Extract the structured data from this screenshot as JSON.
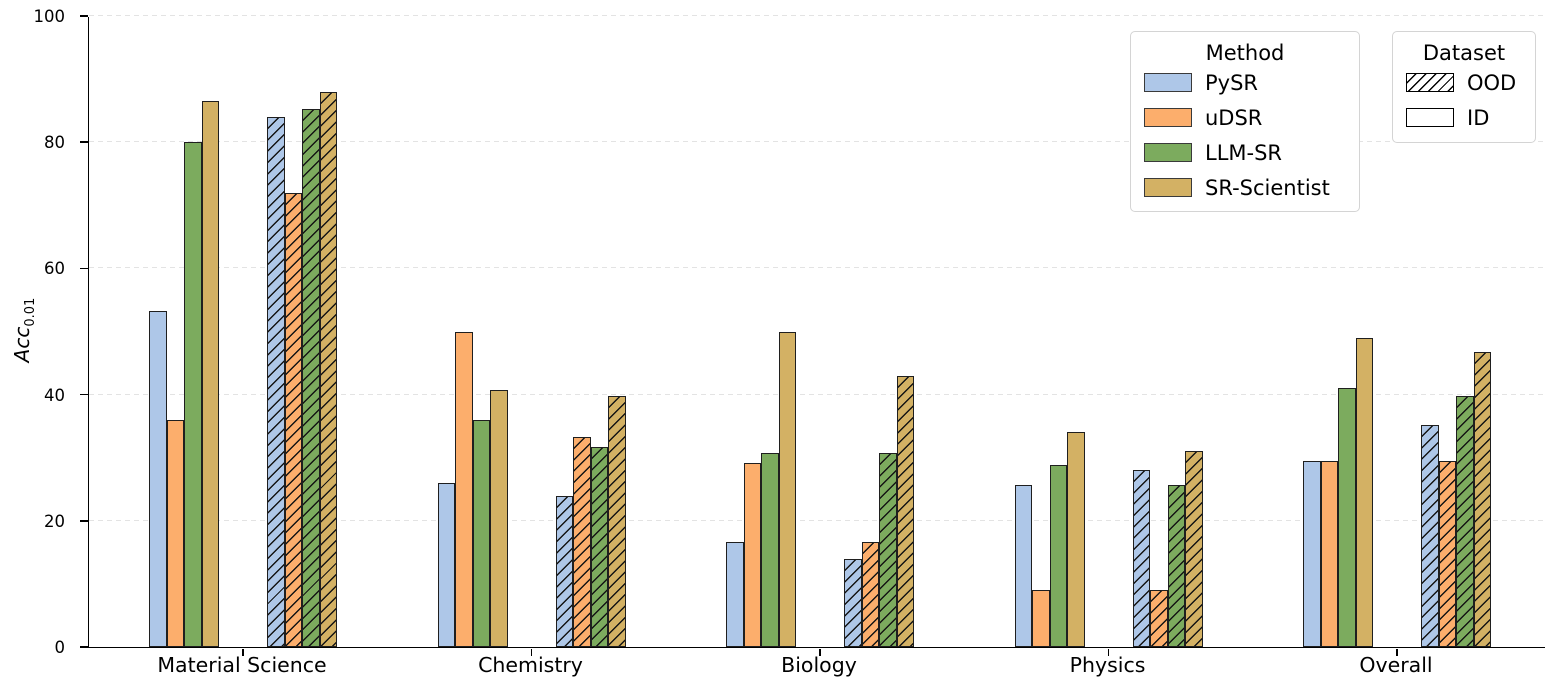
{
  "chart_data": {
    "type": "bar",
    "title": "",
    "ylabel_main": "Acc",
    "ylabel_sub": "0.01",
    "ylim": [
      0,
      100
    ],
    "yticks": [
      0,
      20,
      40,
      60,
      80,
      100
    ],
    "grid": "horizontal dashed",
    "legend_position": "upper right",
    "categories": [
      "Material Science",
      "Chemistry",
      "Biology",
      "Physics",
      "Overall"
    ],
    "datasets": [
      "ID",
      "OOD"
    ],
    "dataset_styles": {
      "ID": "solid",
      "OOD": "hatched"
    },
    "series": [
      {
        "name": "PySR",
        "color": "#aec7e8",
        "ID": [
          53.3,
          26.0,
          16.7,
          25.7,
          29.5
        ],
        "OOD": [
          84.0,
          24.0,
          14.0,
          28.0,
          35.2
        ]
      },
      {
        "name": "uDSR",
        "color": "#fcae6c",
        "ID": [
          36.0,
          50.0,
          29.2,
          9.0,
          29.5
        ],
        "OOD": [
          72.0,
          33.3,
          16.7,
          9.0,
          29.5
        ]
      },
      {
        "name": "LLM-SR",
        "color": "#7cab5e",
        "ID": [
          80.0,
          36.0,
          30.8,
          28.8,
          41.0
        ],
        "OOD": [
          85.3,
          31.7,
          30.8,
          25.7,
          39.8
        ]
      },
      {
        "name": "SR-Scientist",
        "color": "#d3b164",
        "ID": [
          86.5,
          40.8,
          50.0,
          34.0,
          49.0
        ],
        "OOD": [
          88.0,
          39.8,
          43.0,
          31.0,
          46.7
        ]
      }
    ]
  },
  "legend_method": {
    "title": "Method",
    "items": [
      "PySR",
      "uDSR",
      "LLM-SR",
      "SR-Scientist"
    ]
  },
  "legend_dataset": {
    "title": "Dataset",
    "items": [
      "OOD",
      "ID"
    ]
  },
  "colors": {
    "bar_edge": "#1f1f1f",
    "grid": "#e3e3e3",
    "axis": "#000000"
  }
}
